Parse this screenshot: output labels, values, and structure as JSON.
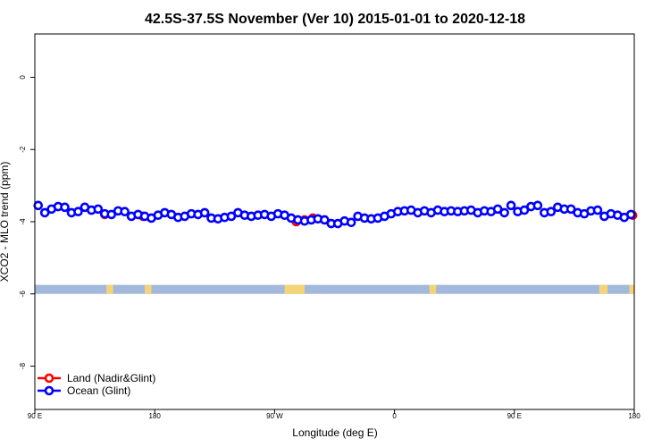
{
  "chart_data": {
    "type": "scatter",
    "title": "42.5S-37.5S November (Ver 10)   2015-01-01 to 2020-12-18",
    "xlabel": "Longitude (deg E)",
    "ylabel": "XCO2 - MLO trend (ppm)",
    "xlim": [
      90,
      450
    ],
    "ylim": [
      -9.2,
      1.2
    ],
    "x_ticks": [
      {
        "value": 90,
        "label": "90 E"
      },
      {
        "value": 162,
        "label": "180"
      },
      {
        "value": 234,
        "label": "90 W"
      },
      {
        "value": 306,
        "label": "0"
      },
      {
        "value": 378,
        "label": "90 E"
      },
      {
        "value": 450,
        "label": "180"
      }
    ],
    "y_ticks": [
      {
        "value": 0,
        "label": "0"
      },
      {
        "value": -2,
        "label": "-2"
      },
      {
        "value": -4,
        "label": "-4"
      },
      {
        "value": -6,
        "label": "-6"
      },
      {
        "value": -8,
        "label": "-8"
      }
    ],
    "legend_position": "bottom-left",
    "colors": {
      "land": "#ff0000",
      "ocean": "#0000ff",
      "ocean_band": "#a3b9dc",
      "land_band": "#f5d478"
    },
    "series": [
      {
        "name": "Land (Nadir&Glint)",
        "color": "#ff0000",
        "x": [
          132,
          155,
          247,
          252,
          257,
          449
        ],
        "y": [
          -3.8,
          -3.85,
          -4.0,
          -3.95,
          -3.9,
          -3.82
        ]
      },
      {
        "name": "Ocean (Glint)",
        "color": "#0000ff",
        "x": [
          92,
          96,
          100,
          104,
          108,
          112,
          116,
          120,
          124,
          128,
          132,
          136,
          140,
          144,
          148,
          152,
          156,
          160,
          164,
          168,
          172,
          176,
          180,
          184,
          188,
          192,
          196,
          200,
          204,
          208,
          212,
          216,
          220,
          224,
          228,
          232,
          236,
          240,
          244,
          248,
          252,
          256,
          260,
          264,
          268,
          272,
          276,
          280,
          284,
          288,
          292,
          296,
          300,
          304,
          308,
          312,
          316,
          320,
          324,
          328,
          332,
          336,
          340,
          344,
          348,
          352,
          356,
          360,
          364,
          368,
          372,
          376,
          380,
          384,
          388,
          392,
          396,
          400,
          404,
          408,
          412,
          416,
          420,
          424,
          428,
          432,
          436,
          440,
          444,
          448
        ],
        "y": [
          -3.55,
          -3.75,
          -3.65,
          -3.58,
          -3.6,
          -3.75,
          -3.72,
          -3.6,
          -3.68,
          -3.65,
          -3.78,
          -3.8,
          -3.7,
          -3.72,
          -3.85,
          -3.8,
          -3.85,
          -3.9,
          -3.82,
          -3.75,
          -3.8,
          -3.88,
          -3.85,
          -3.78,
          -3.8,
          -3.75,
          -3.9,
          -3.92,
          -3.88,
          -3.85,
          -3.75,
          -3.82,
          -3.85,
          -3.82,
          -3.8,
          -3.85,
          -3.78,
          -3.82,
          -3.9,
          -3.95,
          -3.98,
          -3.95,
          -3.92,
          -3.95,
          -4.05,
          -4.05,
          -3.98,
          -4.02,
          -3.85,
          -3.9,
          -3.92,
          -3.9,
          -3.85,
          -3.78,
          -3.72,
          -3.7,
          -3.68,
          -3.75,
          -3.7,
          -3.75,
          -3.68,
          -3.72,
          -3.7,
          -3.72,
          -3.7,
          -3.68,
          -3.75,
          -3.7,
          -3.72,
          -3.65,
          -3.75,
          -3.55,
          -3.72,
          -3.68,
          -3.58,
          -3.55,
          -3.75,
          -3.72,
          -3.6,
          -3.65,
          -3.65,
          -3.75,
          -3.78,
          -3.7,
          -3.68,
          -3.85,
          -3.78,
          -3.82,
          -3.88,
          -3.8
        ]
      }
    ],
    "background_band": {
      "y_range": [
        -6.0,
        -5.75
      ],
      "land_x_ranges": [
        [
          133,
          137
        ],
        [
          156,
          160
        ],
        [
          240,
          252
        ],
        [
          327,
          331
        ],
        [
          429,
          434
        ],
        [
          447,
          450
        ]
      ]
    }
  }
}
